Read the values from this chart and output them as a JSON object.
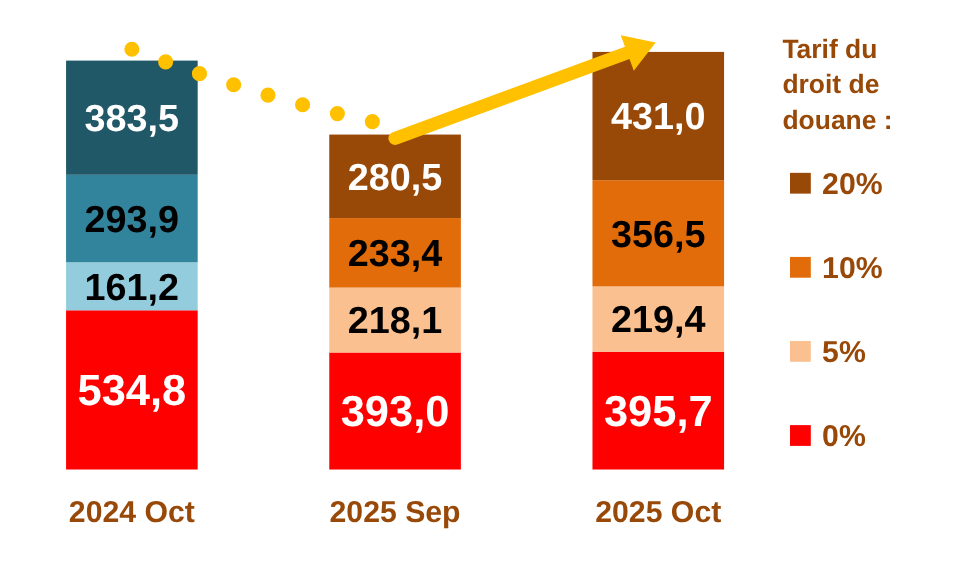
{
  "chart_data": {
    "type": "bar",
    "stacked": true,
    "categories": [
      "2024 Oct",
      "2025 Sep",
      "2025 Oct"
    ],
    "legend_title": "Tarif du droit de douane :",
    "legend": "right",
    "series": [
      {
        "name": "0%",
        "color": "#ff0000",
        "colors": [
          "#ff0000",
          "#ff0000",
          "#ff0000"
        ],
        "values": [
          534.8,
          393.0,
          395.7
        ],
        "value_labels": [
          "534,8",
          "393,0",
          "395,7"
        ]
      },
      {
        "name": "5%",
        "color": "#fac090",
        "colors": [
          "#93cddd",
          "#fac090",
          "#fac090"
        ],
        "values": [
          161.2,
          218.1,
          219.4
        ],
        "value_labels": [
          "161,2",
          "218,1",
          "219,4"
        ]
      },
      {
        "name": "10%",
        "color": "#e36c0a",
        "colors": [
          "#31849b",
          "#e36c0a",
          "#e36c0a"
        ],
        "values": [
          293.9,
          233.4,
          356.5
        ],
        "value_labels": [
          "293,9",
          "233,4",
          "356,5"
        ]
      },
      {
        "name": "20%",
        "color": "#984807",
        "colors": [
          "#215868",
          "#984807",
          "#984807"
        ],
        "values": [
          383.5,
          280.5,
          431.0
        ],
        "value_labels": [
          "383,5",
          "280,5",
          "431,0"
        ]
      }
    ]
  }
}
